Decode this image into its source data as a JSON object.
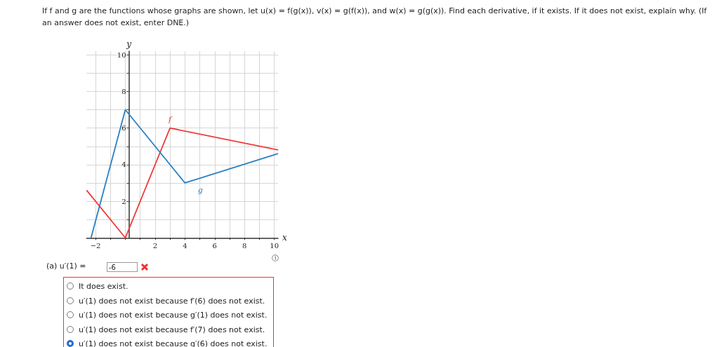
{
  "chart_data": {
    "type": "line",
    "title": "If f and g are the functions whose graphs are shown, let u(x) = f(g(x)), v(x) = g(f(x)), and w(x) = g(g(x)). Find each derivative, if it exists. If it does not exist, explain why. (If an answer does not exist, enter DNE.)",
    "xlabel": "x",
    "ylabel": "y",
    "series": [
      {
        "name": "f",
        "color": "#f03a3a",
        "x": [
          -2.6,
          0,
          3,
          10.25
        ],
        "values": [
          2.6,
          0,
          6,
          4.8
        ]
      },
      {
        "name": "g",
        "color": "#2a7fc1",
        "x": [
          -2.3,
          0,
          4,
          10.25
        ],
        "values": [
          0,
          7,
          3,
          4.6
        ]
      }
    ],
    "xlim": [
      -2.6,
      10.25
    ],
    "ylim": [
      0,
      10.2
    ],
    "xticks": [
      {
        "value": -2,
        "label": "−2"
      },
      {
        "value": -1,
        "label": null
      },
      {
        "value": 0,
        "label": null
      },
      {
        "value": 1,
        "label": null
      },
      2,
      {
        "value": 3,
        "label": null
      },
      4,
      {
        "value": 5,
        "label": null
      },
      6,
      {
        "value": 7,
        "label": null
      },
      8,
      {
        "value": 9,
        "label": null
      },
      10
    ],
    "yticks": [
      {
        "value": 1,
        "label": null
      },
      2,
      {
        "value": 3,
        "label": null
      },
      4,
      {
        "value": 5,
        "label": null
      },
      6,
      {
        "value": 7,
        "label": null
      },
      8,
      {
        "value": 9,
        "label": null
      },
      10
    ],
    "grid": true,
    "annotations": [
      "(a)  u′(1) =",
      "-6",
      "It does exist.",
      "u′(1) does not exist because f′(6) does not exist.",
      "u′(1) does not exist because g′(1) does not exist.",
      "u′(1) does not exist because f′(7) does not exist.",
      "u′(1) does not exist because g′(6) does not exist."
    ]
  }
}
